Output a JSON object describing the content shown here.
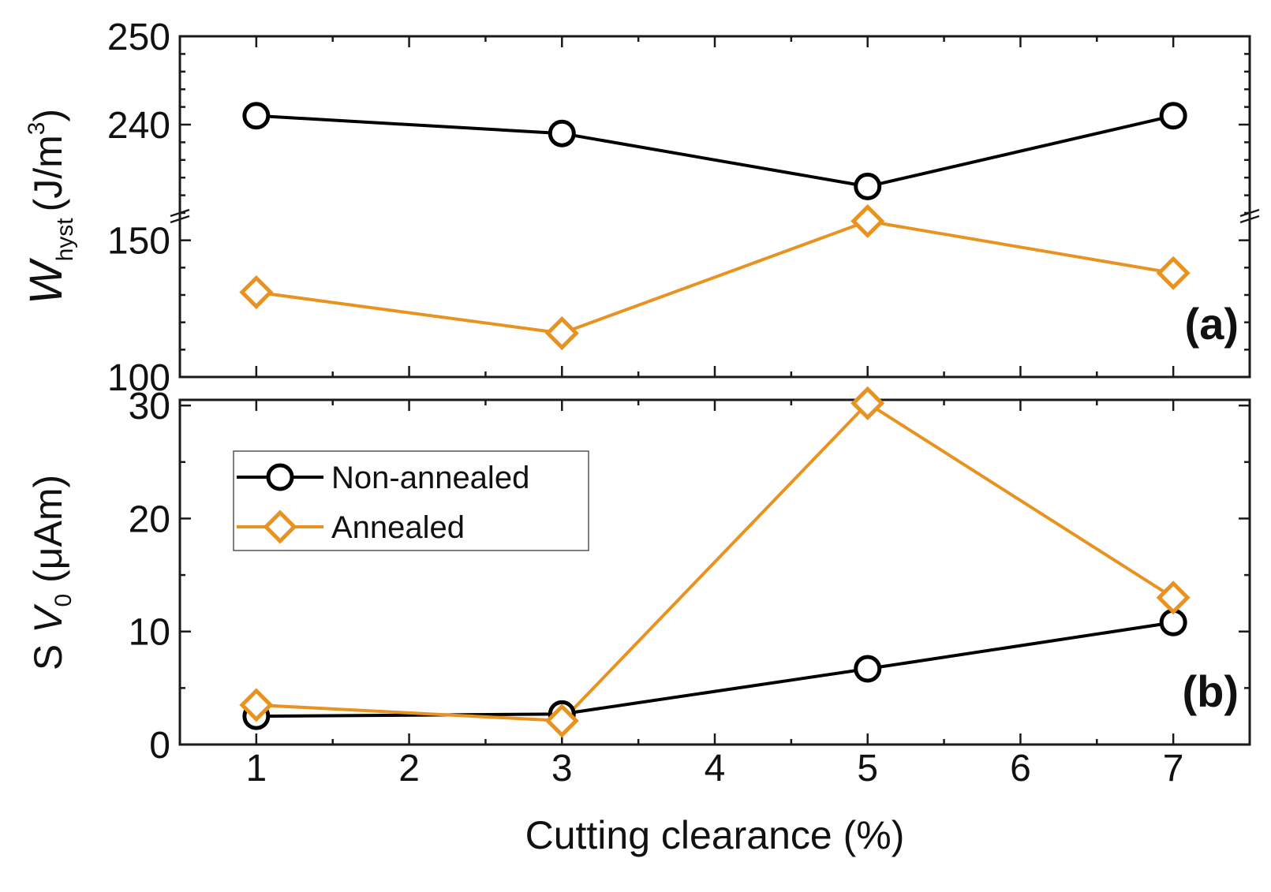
{
  "chart_data": [
    {
      "panel": "(a)",
      "type": "line",
      "x": [
        1,
        3,
        5,
        7
      ],
      "ylabel": {
        "main": "W",
        "subscript": "hyst",
        "units_prefix": "(J/m",
        "units_sup": "3",
        "units_suffix": ")"
      },
      "axis_break": true,
      "y_segments": [
        {
          "range": [
            100,
            160
          ],
          "ticks": [
            "100",
            "150"
          ]
        },
        {
          "range": [
            230,
            250
          ],
          "ticks": [
            "240",
            "250"
          ]
        }
      ],
      "series": [
        {
          "name": "Non-annealed",
          "values": [
            241,
            239,
            233,
            241
          ],
          "color": "#000000",
          "marker": "circle"
        },
        {
          "name": "Annealed",
          "values": [
            131,
            116,
            157,
            138
          ],
          "color": "#e8921f",
          "marker": "diamond"
        }
      ]
    },
    {
      "panel": "(b)",
      "type": "line",
      "x": [
        1,
        3,
        5,
        7
      ],
      "xlabel": "Cutting clearance (%)",
      "x_ticks": [
        "1",
        "2",
        "3",
        "4",
        "5",
        "6",
        "7"
      ],
      "xlim": [
        0.5,
        7.5
      ],
      "ylabel": {
        "prefix": "S ",
        "main": "V",
        "subscript": "0",
        "units": " (μAm)"
      },
      "ylim": [
        0,
        30.5
      ],
      "y_ticks": [
        "0",
        "10",
        "20",
        "30"
      ],
      "series": [
        {
          "name": "Non-annealed",
          "values": [
            2.5,
            2.7,
            6.7,
            10.8
          ],
          "color": "#000000",
          "marker": "circle"
        },
        {
          "name": "Annealed",
          "values": [
            3.5,
            2.1,
            30.2,
            13.0
          ],
          "color": "#e8921f",
          "marker": "diamond"
        }
      ],
      "legend": {
        "position": "top-left",
        "entries": [
          "Non-annealed",
          "Annealed"
        ]
      }
    }
  ]
}
